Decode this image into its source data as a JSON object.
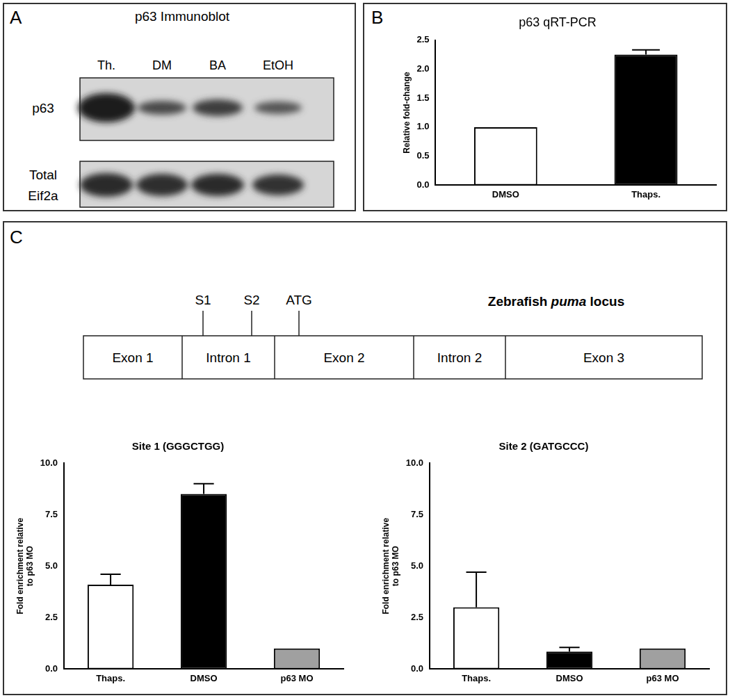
{
  "panel_a": {
    "label": "A",
    "title": "p63 Immunoblot",
    "lanes": [
      "Th.",
      "DM",
      "BA",
      "EtOH"
    ],
    "rows": [
      {
        "label": [
          "p63"
        ]
      },
      {
        "label": [
          "Total",
          "Eif2a"
        ]
      }
    ]
  },
  "panel_b": {
    "label": "B"
  },
  "panel_c": {
    "label": "C",
    "diagram": {
      "title_parts": [
        {
          "text": "Zebrafish "
        },
        {
          "text": "puma",
          "italic": true
        },
        {
          "text": " locus"
        }
      ],
      "segments": [
        "Exon 1",
        "Intron 1",
        "Exon 2",
        "Intron 2",
        "Exon 3"
      ],
      "markers": [
        "S1",
        "S2",
        "ATG"
      ]
    }
  },
  "chart_data": [
    {
      "type": "bar",
      "title": "p63 qRT-PCR",
      "y_label": [
        "Relative fold-change"
      ],
      "categories": [
        "DMSO",
        "Thaps."
      ],
      "values": [
        1.0,
        2.25
      ],
      "errors": [
        null,
        0.08
      ],
      "colors": [
        "#ffffff",
        "#000000"
      ],
      "ylim": [
        0,
        2.5
      ],
      "yticks": [
        {
          "value": 0,
          "label": "0.0"
        },
        {
          "value": 0.5,
          "label": "0.5"
        },
        {
          "value": 1,
          "label": "1.0"
        },
        {
          "value": 1.5,
          "label": "1.5"
        },
        {
          "value": 2,
          "label": "2.0"
        },
        {
          "value": 2.5,
          "label": "2.5"
        }
      ],
      "grid": false
    },
    {
      "type": "bar",
      "title": "Site 1 (GGGCTGG)",
      "y_label": [
        "Fold enrichment relative",
        "to p63 MO"
      ],
      "categories": [
        "Thaps.",
        "DMSO",
        "p63 MO"
      ],
      "values": [
        4.1,
        8.5,
        1.0
      ],
      "errors": [
        0.5,
        0.5,
        null
      ],
      "colors": [
        "#ffffff",
        "#000000",
        "#a0a0a0"
      ],
      "ylim": [
        0,
        10
      ],
      "yticks": [
        {
          "value": 0,
          "label": "0.0"
        },
        {
          "value": 2.5,
          "label": "2.5"
        },
        {
          "value": 5,
          "label": "5.0"
        },
        {
          "value": 7.5,
          "label": "7.5"
        },
        {
          "value": 10,
          "label": "10.0"
        }
      ],
      "grid": false
    },
    {
      "type": "bar",
      "title": "Site 2 (GATGCCC)",
      "y_label": [
        "Fold enrichment relative",
        "to p63 MO"
      ],
      "categories": [
        "Thaps.",
        "DMSO",
        "p63 MO"
      ],
      "values": [
        3.0,
        0.85,
        1.0
      ],
      "errors": [
        1.7,
        0.2,
        null
      ],
      "colors": [
        "#ffffff",
        "#000000",
        "#a0a0a0"
      ],
      "ylim": [
        0,
        10
      ],
      "yticks": [
        {
          "value": 0,
          "label": "0.0"
        },
        {
          "value": 2.5,
          "label": "2.5"
        },
        {
          "value": 5,
          "label": "5.0"
        },
        {
          "value": 7.5,
          "label": "7.5"
        },
        {
          "value": 10,
          "label": "10.0"
        }
      ],
      "grid": false
    }
  ]
}
